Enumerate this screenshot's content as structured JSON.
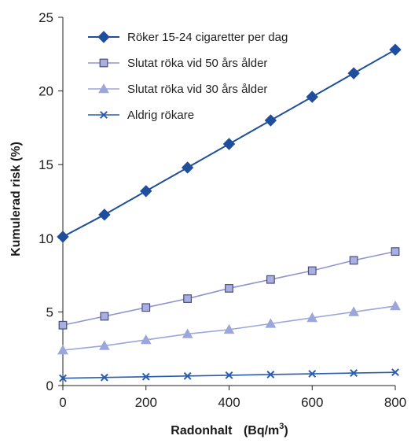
{
  "chart_data": {
    "type": "line",
    "xlabel": "Radonhalt",
    "xunit_prefix": "(Bq/m",
    "xunit_sup": "3",
    "xunit_suffix": ")",
    "ylabel": "Kumulerad risk (%)",
    "xlim": [
      0,
      800
    ],
    "ylim": [
      0,
      25
    ],
    "x_ticks": [
      "0",
      "200",
      "400",
      "600",
      "800"
    ],
    "y_ticks": [
      "0",
      "5",
      "10",
      "15",
      "20",
      "25"
    ],
    "grid": false,
    "legend_position": "top-left",
    "x": [
      0,
      100,
      200,
      300,
      400,
      500,
      600,
      700,
      800
    ],
    "series": [
      {
        "name": "Röker 15-24 cigaretter per dag",
        "marker": "diamond",
        "color": "#1f4e9c",
        "values": [
          10.1,
          11.6,
          13.2,
          14.8,
          16.4,
          18.0,
          19.6,
          21.2,
          22.8
        ]
      },
      {
        "name": "Slutat röka vid 50 års ålder",
        "marker": "square",
        "color": "#8e96cf",
        "values": [
          4.1,
          4.7,
          5.3,
          5.9,
          6.6,
          7.2,
          7.8,
          8.5,
          9.1
        ]
      },
      {
        "name": "Slutat röka vid 30 års ålder",
        "marker": "triangle",
        "color": "#9aa6dc",
        "values": [
          2.4,
          2.7,
          3.1,
          3.5,
          3.8,
          4.2,
          4.6,
          5.0,
          5.4
        ]
      },
      {
        "name": "Aldrig rökare",
        "marker": "x",
        "color": "#2a5db0",
        "values": [
          0.5,
          0.55,
          0.6,
          0.65,
          0.7,
          0.75,
          0.8,
          0.85,
          0.9
        ]
      }
    ]
  }
}
